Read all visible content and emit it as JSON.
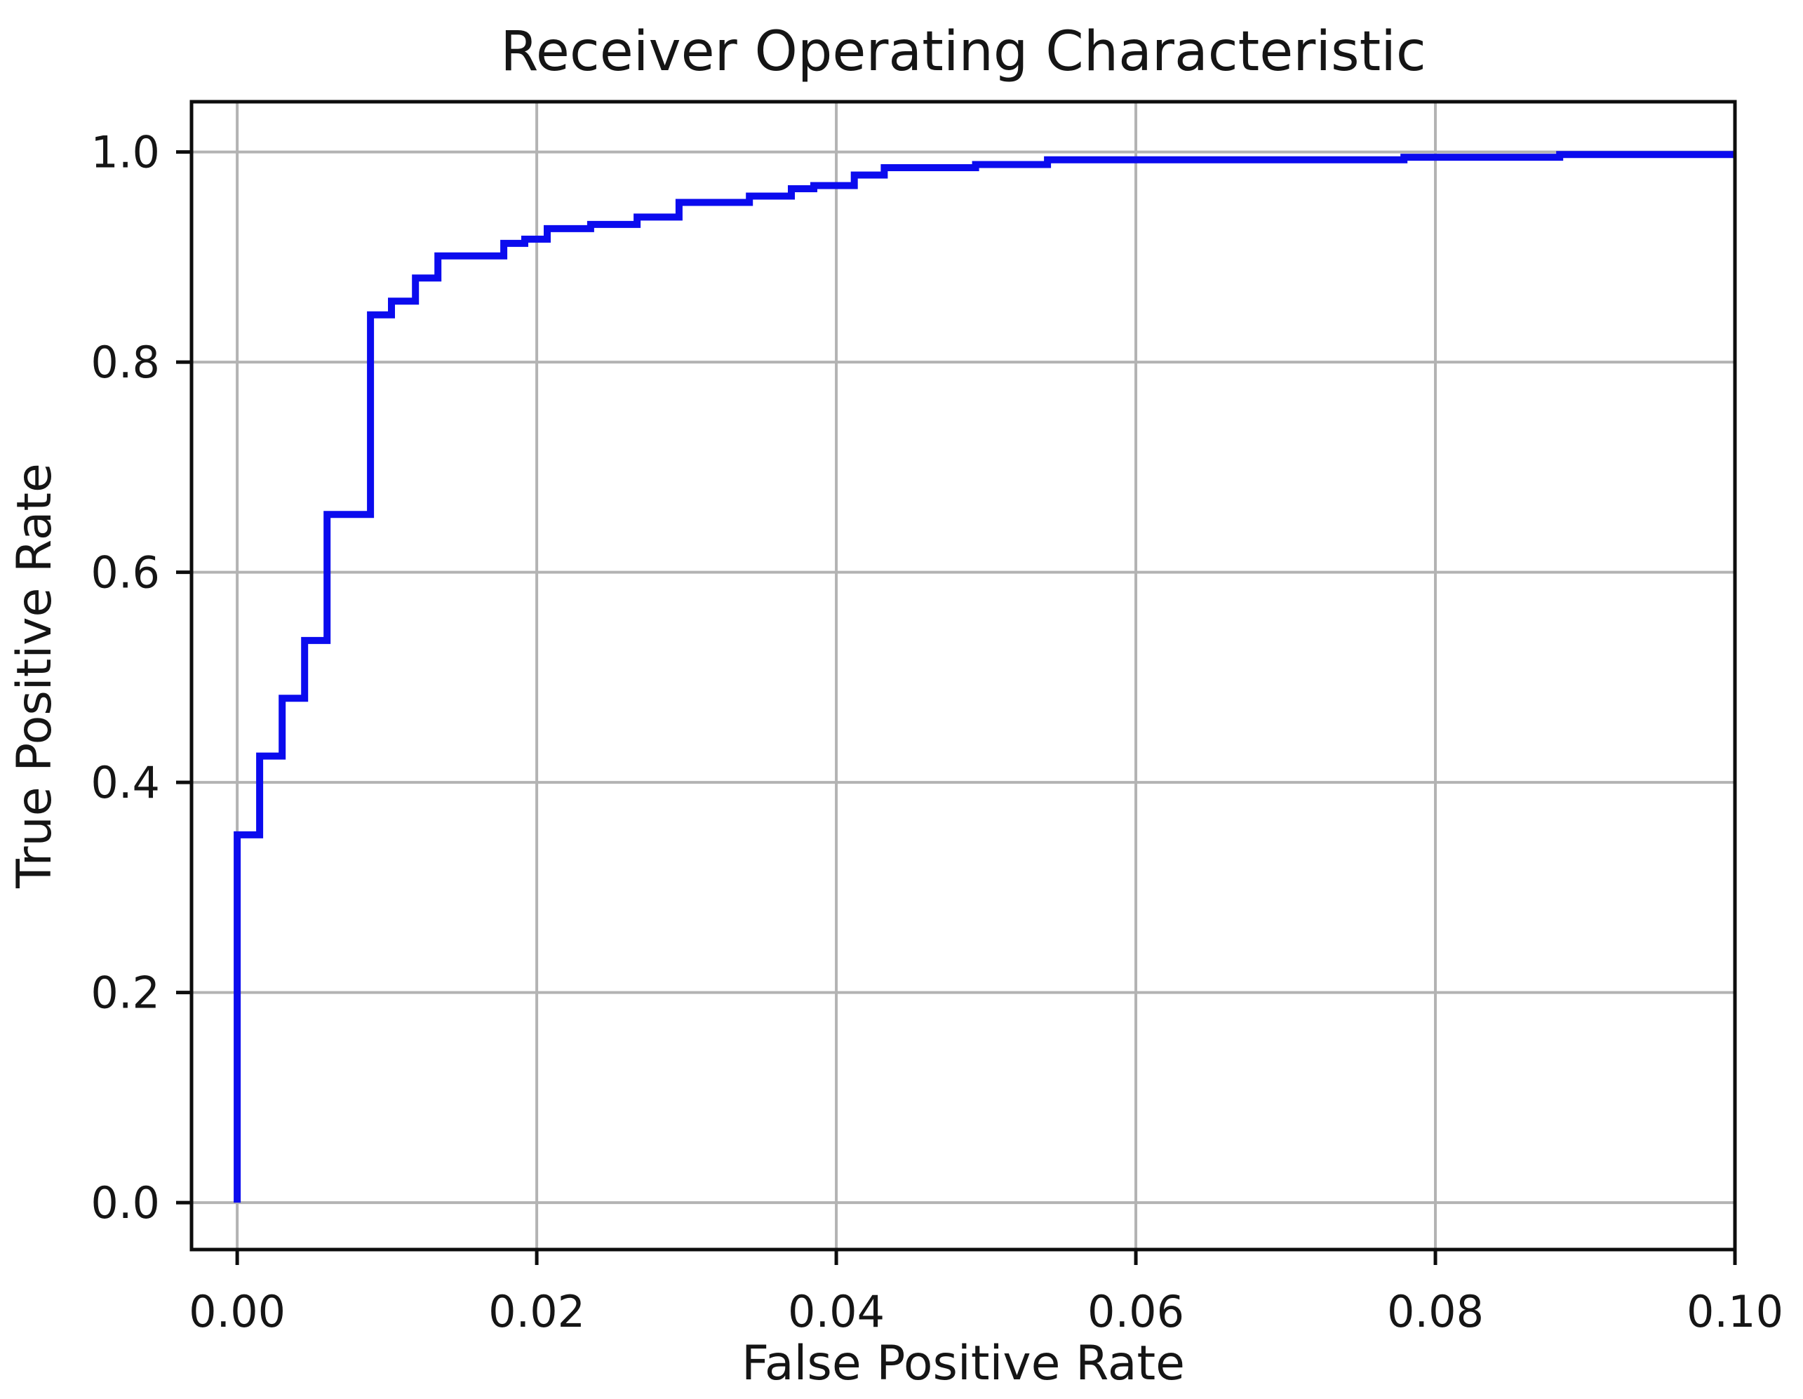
{
  "title": "Receiver Operating Characteristic",
  "colors": {
    "curve": "#0b0bee",
    "grid": "#b3b3b3",
    "spine": "#0d0d0d",
    "text": "#151515",
    "background": "#ffffff"
  },
  "chart_data": {
    "type": "line",
    "subtype": "roc_step_curve",
    "title": "Receiver Operating Characteristic",
    "xlabel": "False Positive Rate",
    "ylabel": "True Positive Rate",
    "xlim": [
      -0.00305,
      0.1
    ],
    "ylim": [
      -0.0447,
      1.0478
    ],
    "grid": true,
    "legend": null,
    "x_tick_labels": [
      "0.00",
      "0.02",
      "0.04",
      "0.06",
      "0.08",
      "0.10"
    ],
    "x_tick_values": [
      0.0,
      0.02,
      0.04,
      0.06,
      0.08,
      0.1
    ],
    "y_tick_labels": [
      "0.0",
      "0.2",
      "0.4",
      "0.6",
      "0.8",
      "1.0"
    ],
    "y_tick_values": [
      0.0,
      0.2,
      0.4,
      0.6,
      0.8,
      1.0
    ],
    "series": [
      {
        "name": "ROC curve",
        "color_key": "curve",
        "start": [
          0.0,
          0.0
        ],
        "end_x": 0.1,
        "steps": [
          [
            0.0,
            0.35
          ],
          [
            0.0015,
            0.425
          ],
          [
            0.003,
            0.48
          ],
          [
            0.0045,
            0.535
          ],
          [
            0.006,
            0.655
          ],
          [
            0.0089,
            0.845
          ],
          [
            0.0103,
            0.858
          ],
          [
            0.0119,
            0.88
          ],
          [
            0.0134,
            0.901
          ],
          [
            0.0178,
            0.913
          ],
          [
            0.0192,
            0.917
          ],
          [
            0.0207,
            0.927
          ],
          [
            0.0236,
            0.931
          ],
          [
            0.0267,
            0.938
          ],
          [
            0.0295,
            0.952
          ],
          [
            0.0342,
            0.958
          ],
          [
            0.037,
            0.965
          ],
          [
            0.0385,
            0.968
          ],
          [
            0.0412,
            0.978
          ],
          [
            0.0432,
            0.985
          ],
          [
            0.0493,
            0.988
          ],
          [
            0.0541,
            0.9925
          ],
          [
            0.0779,
            0.995
          ],
          [
            0.0883,
            0.9975
          ]
        ]
      }
    ]
  }
}
